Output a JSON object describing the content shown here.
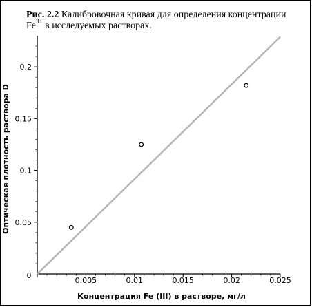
{
  "caption": {
    "label": "Рис. 2.2",
    "text_before": " Калибровочная кривая для определения концентрации Fe",
    "superscript": "3+",
    "text_after": " в исследуемых растворах."
  },
  "chart_data": {
    "type": "scatter",
    "xlabel": "Концентрация Fe (III) в растворе, мг/л",
    "ylabel": "Оптическая плотность раствора D",
    "xlim": [
      0,
      0.025
    ],
    "ylim": [
      0,
      0.23
    ],
    "xticks": [
      0,
      0.005,
      0.01,
      0.015,
      0.02,
      0.025
    ],
    "xtick_labels": [
      "0",
      "0.005",
      "0.01",
      "0.015",
      "0.02",
      "0.025"
    ],
    "yticks": [
      0.05,
      0.1,
      0.15,
      0.2
    ],
    "ytick_labels": [
      "0.05",
      "0.1",
      "0.15",
      "0.2"
    ],
    "points": [
      {
        "x": 0.0035,
        "y": 0.045
      },
      {
        "x": 0.0107,
        "y": 0.125
      },
      {
        "x": 0.0215,
        "y": 0.182
      }
    ],
    "fit_line": {
      "x": [
        0,
        0.025
      ],
      "y": [
        0,
        0.229
      ]
    },
    "colors": {
      "fit_line": "#b5b5b5",
      "points": "#000000",
      "axes": "#000000"
    }
  }
}
